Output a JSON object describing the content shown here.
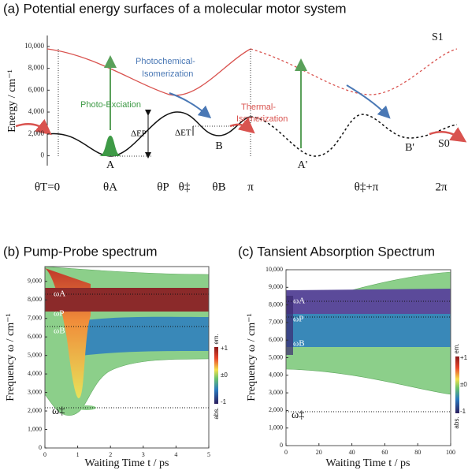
{
  "panel_a": {
    "title": "(a) Potential energy surfaces of a molecular motor system",
    "ylabel": "Energy / cm⁻¹",
    "ylim": [
      -900,
      11000
    ],
    "yticks": [
      0,
      {
        "value": 2000,
        "label": "2,000"
      },
      {
        "value": 4000,
        "label": "4,000"
      },
      {
        "value": 6000,
        "label": "6,000"
      },
      {
        "value": 8000,
        "label": "8,000"
      },
      {
        "value": 10000,
        "label": "10,000"
      }
    ],
    "xtick_labels": [
      "θT=0",
      "θA",
      "θP",
      "θ‡",
      "θB",
      "π",
      "θ‡+π",
      "2π"
    ],
    "annotations": {
      "s1": "S1",
      "s0": "S0",
      "photochemical": [
        "Photochemical-",
        "Isomerization"
      ],
      "photo_excitation": "Photo-Exciation",
      "thermal": [
        "Thermal-",
        "Isomerization"
      ],
      "a": "A",
      "b": "B",
      "a_prime": "A'",
      "b_prime": "B'",
      "delta_ep": "ΔEP",
      "delta_et": "ΔET"
    }
  },
  "panel_b": {
    "title": "(b) Pump-Probe spectrum",
    "ylabel": "Frequency ω / cm⁻¹",
    "xlabel": "Waiting Time t / ps",
    "ylim": [
      0,
      9800
    ],
    "xlim": [
      0,
      5
    ],
    "yticks": [
      0,
      {
        "value": 1000,
        "label": "1,000"
      },
      {
        "value": 2000,
        "label": "2,000"
      },
      {
        "value": 3000,
        "label": "3,000"
      },
      {
        "value": 4000,
        "label": "4,000"
      },
      {
        "value": 5000,
        "label": "5,000"
      },
      {
        "value": 6000,
        "label": "6,000"
      },
      {
        "value": 7000,
        "label": "7,000"
      },
      {
        "value": 8000,
        "label": "8,000"
      },
      {
        "value": 9000,
        "label": "9,000"
      }
    ],
    "xticks": [
      0,
      1,
      2,
      3,
      4,
      5
    ],
    "annotations": [
      "ωA",
      "ωP",
      "ωB",
      "ω‡"
    ],
    "colorbar": [
      "em.",
      "+1",
      "±0",
      "-1",
      "abs."
    ]
  },
  "panel_c": {
    "title": "(c) Tansient Absorption Spectrum",
    "ylabel": "Frequency ω / cm⁻¹",
    "xlabel": "Waiting Time t / ps",
    "ylim": [
      0,
      10000
    ],
    "xlim": [
      0,
      100
    ],
    "yticks": [
      0,
      {
        "value": 1000,
        "label": "1,000"
      },
      {
        "value": 2000,
        "label": "2,000"
      },
      {
        "value": 3000,
        "label": "3,000"
      },
      {
        "value": 4000,
        "label": "4,000"
      },
      {
        "value": 5000,
        "label": "5,000"
      },
      {
        "value": 6000,
        "label": "6,000"
      },
      {
        "value": 7000,
        "label": "7,000"
      },
      {
        "value": 8000,
        "label": "8,000"
      },
      {
        "value": 9000,
        "label": "9,000"
      },
      {
        "value": 10000,
        "label": "10,000"
      }
    ],
    "xticks": [
      0,
      20,
      40,
      60,
      80,
      100
    ],
    "annotations": [
      "ωA",
      "ωP",
      "ωB",
      "ω‡"
    ],
    "colorbar": [
      "em.",
      "+1",
      "±0",
      "-1",
      "abs."
    ]
  }
}
